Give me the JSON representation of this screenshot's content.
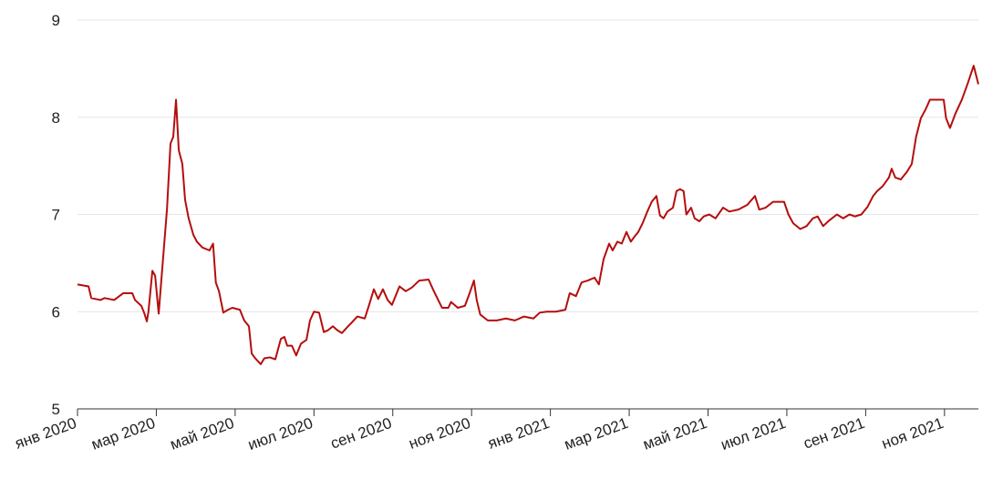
{
  "chart_data": {
    "type": "line",
    "x": [
      0,
      0.28,
      0.35,
      0.58,
      0.69,
      0.93,
      1.16,
      1.39,
      1.46,
      1.62,
      1.69,
      1.76,
      1.8,
      1.9,
      1.97,
      2.06,
      2.15,
      2.27,
      2.36,
      2.43,
      2.5,
      2.57,
      2.66,
      2.73,
      2.82,
      2.94,
      3.03,
      3.17,
      3.35,
      3.44,
      3.51,
      3.59,
      3.7,
      3.82,
      3.93,
      4.12,
      4.23,
      4.35,
      4.42,
      4.51,
      4.65,
      4.74,
      4.88,
      5.02,
      5.16,
      5.25,
      5.32,
      5.44,
      5.55,
      5.67,
      5.81,
      5.9,
      6.0,
      6.13,
      6.25,
      6.36,
      6.48,
      6.59,
      6.71,
      6.82,
      6.94,
      7.1,
      7.29,
      7.4,
      7.52,
      7.63,
      7.75,
      7.87,
      7.98,
      8.17,
      8.33,
      8.49,
      8.67,
      8.91,
      9.02,
      9.14,
      9.25,
      9.41,
      9.48,
      9.65,
      9.83,
      9.95,
      10.06,
      10.13,
      10.22,
      10.41,
      10.64,
      10.87,
      11.1,
      11.33,
      11.57,
      11.73,
      11.91,
      12.14,
      12.38,
      12.49,
      12.65,
      12.79,
      12.95,
      13.12,
      13.23,
      13.35,
      13.49,
      13.58,
      13.7,
      13.81,
      13.93,
      14.04,
      14.13,
      14.23,
      14.34,
      14.46,
      14.57,
      14.69,
      14.78,
      14.87,
      14.97,
      15.11,
      15.2,
      15.29,
      15.38,
      15.45,
      15.57,
      15.66,
      15.78,
      15.89,
      16.03,
      16.19,
      16.38,
      16.54,
      16.77,
      17.0,
      17.19,
      17.3,
      17.46,
      17.65,
      17.84,
      17.93,
      18.04,
      18.16,
      18.34,
      18.5,
      18.66,
      18.78,
      18.92,
      19.08,
      19.27,
      19.43,
      19.59,
      19.73,
      19.89,
      20.05,
      20.19,
      20.29,
      20.43,
      20.59,
      20.66,
      20.75,
      20.89,
      21.05,
      21.17,
      21.28,
      21.4,
      21.52,
      21.63,
      21.98,
      22.04,
      22.14,
      22.28,
      22.44,
      22.6,
      22.74,
      22.86
    ],
    "series": [
      {
        "color": "#b50d0d",
        "values": [
          6.28,
          6.26,
          6.14,
          6.12,
          6.14,
          6.12,
          6.19,
          6.19,
          6.12,
          6.06,
          5.99,
          5.9,
          6.0,
          6.42,
          6.37,
          5.98,
          6.44,
          7.05,
          7.73,
          7.8,
          8.18,
          7.66,
          7.52,
          7.15,
          6.96,
          6.79,
          6.72,
          6.66,
          6.63,
          6.7,
          6.3,
          6.21,
          5.99,
          6.02,
          6.04,
          6.02,
          5.91,
          5.85,
          5.57,
          5.52,
          5.46,
          5.52,
          5.53,
          5.51,
          5.72,
          5.74,
          5.65,
          5.65,
          5.55,
          5.67,
          5.71,
          5.91,
          6.0,
          5.99,
          5.79,
          5.81,
          5.85,
          5.81,
          5.78,
          5.83,
          5.88,
          5.95,
          5.93,
          6.07,
          6.23,
          6.13,
          6.23,
          6.12,
          6.07,
          6.26,
          6.21,
          6.25,
          6.32,
          6.33,
          6.23,
          6.13,
          6.04,
          6.04,
          6.1,
          6.04,
          6.06,
          6.19,
          6.32,
          6.12,
          5.97,
          5.91,
          5.91,
          5.93,
          5.91,
          5.95,
          5.93,
          5.99,
          6.0,
          6.0,
          6.02,
          6.19,
          6.16,
          6.3,
          6.32,
          6.35,
          6.28,
          6.54,
          6.7,
          6.63,
          6.72,
          6.7,
          6.82,
          6.72,
          6.77,
          6.82,
          6.91,
          7.03,
          7.13,
          7.19,
          6.99,
          6.96,
          7.03,
          7.07,
          7.24,
          7.26,
          7.24,
          7.0,
          7.07,
          6.96,
          6.93,
          6.98,
          7.0,
          6.96,
          7.07,
          7.03,
          7.05,
          7.1,
          7.19,
          7.05,
          7.07,
          7.13,
          7.13,
          7.13,
          7.0,
          6.91,
          6.85,
          6.88,
          6.96,
          6.98,
          6.88,
          6.94,
          7.0,
          6.96,
          7.0,
          6.98,
          7.0,
          7.08,
          7.19,
          7.24,
          7.29,
          7.38,
          7.47,
          7.38,
          7.36,
          7.44,
          7.52,
          7.8,
          7.99,
          8.08,
          8.18,
          8.18,
          7.99,
          7.89,
          8.04,
          8.18,
          8.36,
          8.53,
          8.34
        ]
      }
    ],
    "xlim": [
      0,
      22.86
    ],
    "xticks": [
      {
        "value": 0,
        "label": "янв 2020"
      },
      {
        "value": 2,
        "label": "мар 2020"
      },
      {
        "value": 4,
        "label": "май 2020"
      },
      {
        "value": 6,
        "label": "июл 2020"
      },
      {
        "value": 8,
        "label": "сен 2020"
      },
      {
        "value": 10,
        "label": "ноя 2020"
      },
      {
        "value": 12,
        "label": "янв 2021"
      },
      {
        "value": 14,
        "label": "мар 2021"
      },
      {
        "value": 16,
        "label": "май 2021"
      },
      {
        "value": 18,
        "label": "июл 2021"
      },
      {
        "value": 20,
        "label": "сен 2021"
      },
      {
        "value": 22,
        "label": "ноя 2021"
      }
    ],
    "ylim": [
      5,
      9
    ],
    "yticks": [
      5,
      6,
      7,
      8,
      9
    ],
    "grid": true
  }
}
